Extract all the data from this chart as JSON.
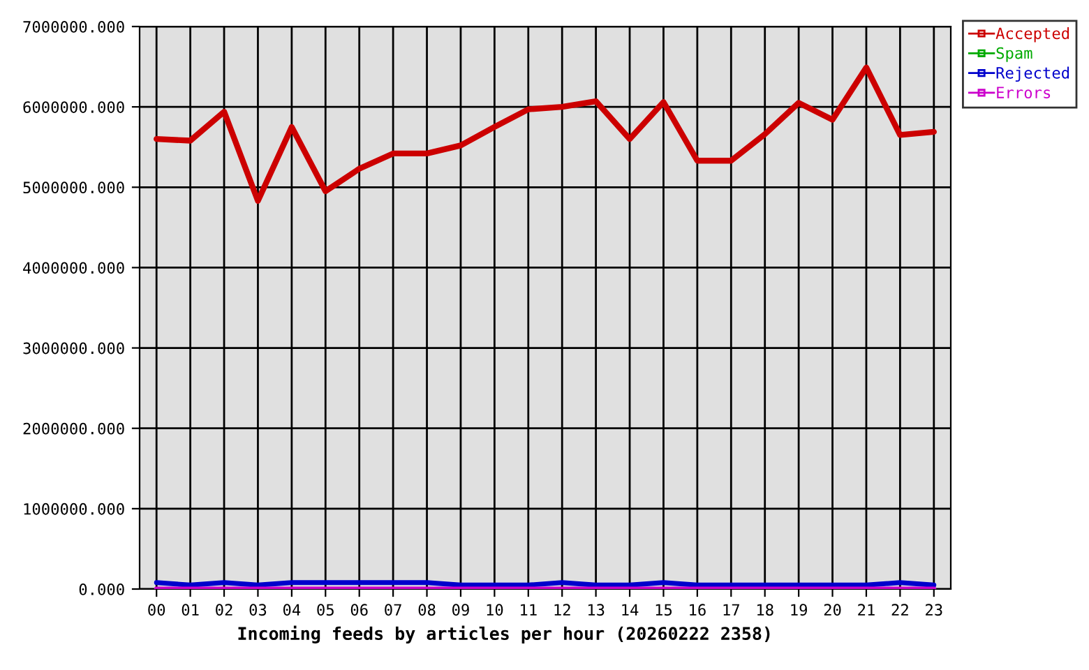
{
  "chart_data": {
    "type": "line",
    "xlabel": "Incoming feeds by articles per hour (20260222 2358)",
    "categories": [
      "00",
      "01",
      "02",
      "03",
      "04",
      "05",
      "06",
      "07",
      "08",
      "09",
      "10",
      "11",
      "12",
      "13",
      "14",
      "15",
      "16",
      "17",
      "18",
      "19",
      "20",
      "21",
      "22",
      "23"
    ],
    "series": [
      {
        "name": "Accepted",
        "color": "#cc0000",
        "values": [
          5600000,
          5580000,
          5940000,
          4830000,
          5750000,
          4950000,
          5230000,
          5420000,
          5420000,
          5520000,
          5750000,
          5970000,
          6000000,
          6070000,
          5600000,
          6060000,
          5330000,
          5330000,
          5660000,
          6050000,
          5840000,
          6490000,
          5650000,
          5690000
        ]
      },
      {
        "name": "Spam",
        "color": "#00aa00",
        "values": [
          null,
          null,
          null,
          null,
          null,
          null,
          null,
          null,
          null,
          null,
          null,
          null,
          null,
          null,
          null,
          null,
          null,
          null,
          null,
          null,
          null,
          null,
          null,
          null
        ]
      },
      {
        "name": "Rejected",
        "color": "#0000cc",
        "values": [
          80000,
          50000,
          80000,
          50000,
          80000,
          80000,
          80000,
          80000,
          80000,
          50000,
          50000,
          50000,
          80000,
          50000,
          50000,
          80000,
          50000,
          50000,
          50000,
          50000,
          50000,
          50000,
          80000,
          50000
        ]
      },
      {
        "name": "Errors",
        "color": "#cc00cc",
        "values": [
          0,
          0,
          0,
          0,
          0,
          0,
          0,
          0,
          0,
          0,
          0,
          0,
          0,
          0,
          0,
          0,
          0,
          0,
          0,
          0,
          0,
          0,
          0,
          0
        ]
      }
    ],
    "ylim": [
      0,
      7000000
    ],
    "yticks": [
      {
        "value": 0,
        "label": "0.000"
      },
      {
        "value": 1000000,
        "label": "1000000.000"
      },
      {
        "value": 2000000,
        "label": "2000000.000"
      },
      {
        "value": 3000000,
        "label": "3000000.000"
      },
      {
        "value": 4000000,
        "label": "4000000.000"
      },
      {
        "value": 5000000,
        "label": "5000000.000"
      },
      {
        "value": 6000000,
        "label": "6000000.000"
      },
      {
        "value": 7000000,
        "label": "7000000.000"
      }
    ],
    "grid": true,
    "legend": "top right"
  }
}
